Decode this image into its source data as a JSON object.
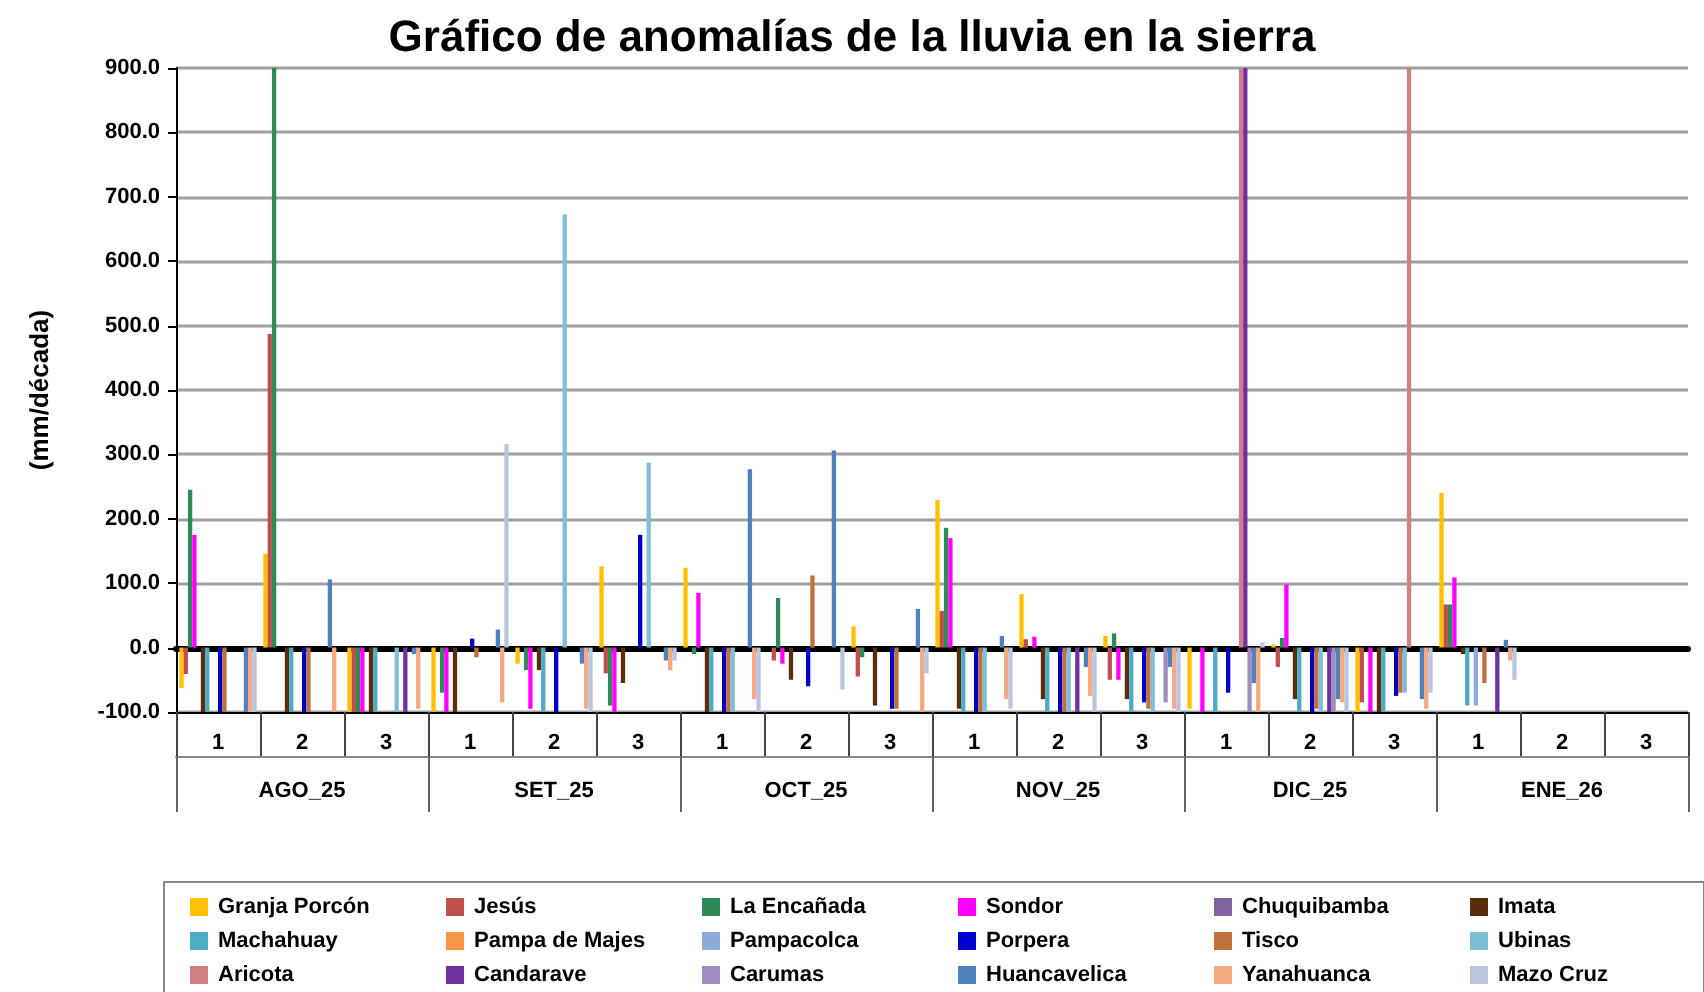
{
  "chart_data": {
    "type": "bar",
    "title": "Gráfico de anomalías de la lluvia en la sierra",
    "ylabel": "(mm/década)",
    "categories": [
      "1",
      "2",
      "3",
      "1",
      "2",
      "3",
      "1",
      "2",
      "3",
      "1",
      "2",
      "3",
      "1",
      "2",
      "3",
      "1",
      "2",
      "3"
    ],
    "annotations": [
      "AGO_25",
      "SET_25",
      "OCT_25",
      "NOV_25",
      "DIC_25",
      "ENE_26"
    ],
    "ylim": [
      -100,
      900
    ],
    "yticks": [
      {
        "value": -100,
        "label": "-100.0"
      },
      {
        "value": 0,
        "label": "0.0"
      },
      {
        "value": 100,
        "label": "100.0"
      },
      {
        "value": 200,
        "label": "200.0"
      },
      {
        "value": 300,
        "label": "300.0"
      },
      {
        "value": 400,
        "label": "400.0"
      },
      {
        "value": 500,
        "label": "500.0"
      },
      {
        "value": 600,
        "label": "600.0"
      },
      {
        "value": 700,
        "label": "700.0"
      },
      {
        "value": 800,
        "label": "800.0"
      },
      {
        "value": 900,
        "label": "900.0"
      }
    ],
    "grid": "y",
    "legend": "bottom",
    "series": [
      {
        "name": "Granja Porcón",
        "color": "#ffc000",
        "values": [
          -63,
          146,
          -100,
          -100,
          -25,
          126,
          124,
          null,
          33,
          229,
          83,
          18,
          -95,
          5,
          -100,
          240,
          null,
          null
        ]
      },
      {
        "name": "Jesús",
        "color": "#c0504d",
        "values": [
          -41,
          487,
          -100,
          null,
          null,
          -40,
          null,
          -20,
          -45,
          57,
          13,
          -50,
          null,
          -30,
          -85,
          67,
          null,
          null
        ]
      },
      {
        "name": "La Encañada",
        "color": "#2e8b57",
        "values": [
          245,
          900,
          -100,
          -70,
          -35,
          -90,
          -10,
          77,
          -15,
          186,
          null,
          22,
          null,
          15,
          null,
          67,
          null,
          null
        ]
      },
      {
        "name": "Sondor",
        "color": "#ff00ff",
        "values": [
          175,
          null,
          -100,
          -100,
          -95,
          -100,
          85,
          -25,
          null,
          170,
          17,
          -50,
          -100,
          98,
          -100,
          109,
          null,
          null
        ]
      },
      {
        "name": "Chuquibamba",
        "color": "#8064a2",
        "values": [
          null,
          null,
          null,
          null,
          null,
          null,
          null,
          null,
          null,
          null,
          null,
          null,
          null,
          null,
          null,
          null,
          null,
          null
        ]
      },
      {
        "name": "Imata",
        "color": "#5a2d0c",
        "values": [
          -100,
          -100,
          -100,
          -100,
          -35,
          -55,
          -100,
          -50,
          -90,
          -95,
          -80,
          -80,
          null,
          -80,
          -100,
          -10,
          null,
          null
        ]
      },
      {
        "name": "Machahuay",
        "color": "#4bacc6",
        "values": [
          -100,
          -100,
          -100,
          null,
          -100,
          null,
          -100,
          null,
          null,
          -100,
          -100,
          -100,
          -100,
          -100,
          -100,
          -90,
          null,
          null
        ]
      },
      {
        "name": "Pampa de Majes",
        "color": "#f79646",
        "values": [
          null,
          null,
          null,
          null,
          null,
          null,
          null,
          null,
          null,
          null,
          null,
          null,
          null,
          null,
          null,
          null,
          null,
          null
        ]
      },
      {
        "name": "Pampacolca",
        "color": "#8ea9db",
        "values": [
          null,
          null,
          null,
          null,
          null,
          null,
          null,
          null,
          null,
          null,
          null,
          null,
          null,
          null,
          null,
          -90,
          null,
          null
        ]
      },
      {
        "name": "Porpera",
        "color": "#0000cc",
        "values": [
          -100,
          -100,
          null,
          14,
          -100,
          175,
          -100,
          -60,
          -95,
          -100,
          -100,
          -85,
          -70,
          -100,
          -75,
          null,
          null,
          null
        ]
      },
      {
        "name": "Tisco",
        "color": "#c0703a",
        "values": [
          -100,
          -100,
          null,
          -15,
          null,
          null,
          -100,
          112,
          -95,
          -100,
          -100,
          -95,
          null,
          -95,
          -70,
          -55,
          null,
          null
        ]
      },
      {
        "name": "Ubinas",
        "color": "#7fbfd6",
        "values": [
          null,
          null,
          -100,
          null,
          673,
          287,
          -100,
          null,
          null,
          -100,
          -100,
          -100,
          null,
          -100,
          -70,
          null,
          null,
          null
        ]
      },
      {
        "name": "Aricota",
        "color": "#d08080",
        "values": [
          null,
          null,
          null,
          null,
          null,
          null,
          null,
          null,
          null,
          null,
          null,
          null,
          900,
          null,
          900,
          null,
          null,
          null
        ]
      },
      {
        "name": "Candarave",
        "color": "#7030a0",
        "values": [
          null,
          null,
          -100,
          null,
          null,
          null,
          null,
          null,
          null,
          null,
          -100,
          null,
          900,
          -100,
          null,
          -100,
          null,
          null
        ]
      },
      {
        "name": "Carumas",
        "color": "#a08cc0",
        "values": [
          null,
          null,
          null,
          null,
          null,
          null,
          null,
          null,
          null,
          null,
          null,
          -85,
          -100,
          -100,
          null,
          null,
          null,
          null
        ]
      },
      {
        "name": "Huancavelica",
        "color": "#4f81bd",
        "values": [
          -100,
          106,
          -10,
          28,
          -25,
          -20,
          277,
          306,
          60,
          18,
          -30,
          -30,
          -55,
          -80,
          -80,
          12,
          null,
          null
        ]
      },
      {
        "name": "Yanahuanca",
        "color": "#f4a980",
        "values": [
          -100,
          -100,
          -95,
          -85,
          -95,
          -35,
          -80,
          null,
          -100,
          -80,
          -75,
          -95,
          -100,
          -85,
          -95,
          -20,
          null,
          null
        ]
      },
      {
        "name": "Mazo Cruz",
        "color": "#b8c4e0",
        "values": [
          -100,
          null,
          null,
          316,
          -100,
          -20,
          -100,
          -65,
          -40,
          -95,
          -100,
          -100,
          8,
          -100,
          -70,
          -50,
          null,
          null
        ]
      }
    ]
  }
}
